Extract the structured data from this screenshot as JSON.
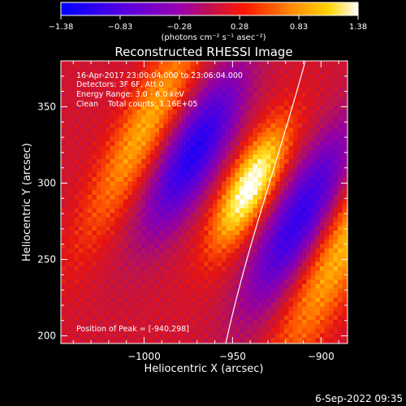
{
  "chart_data": {
    "type": "heatmap",
    "title": "Reconstructed RHESSI Image",
    "xlabel": "Heliocentric X (arcsec)",
    "ylabel": "Heliocentric Y (arcsec)",
    "xlim": [
      -1047,
      -885
    ],
    "ylim": [
      195,
      380
    ],
    "xticks": [
      -1000,
      -950,
      -900
    ],
    "xtick_labels": [
      "−1000",
      "−950",
      "−900"
    ],
    "yticks": [
      200,
      250,
      300,
      350
    ],
    "ytick_labels": [
      "200",
      "250",
      "300",
      "350"
    ],
    "colorbar": {
      "range": [
        -1.38,
        1.38
      ],
      "ticks": [
        -1.38,
        -0.83,
        -0.28,
        0.28,
        0.83,
        1.38
      ],
      "tick_labels": [
        "−1.38",
        "−0.83",
        "−0.28",
        "0.28",
        "0.83",
        "1.38"
      ],
      "unit_label": "(photons cm⁻² s⁻¹ asec⁻²)"
    },
    "peak": {
      "x": -940,
      "y": 298
    },
    "annotations": [
      "16-Apr-2017 23:00:04.000 to 23:06:04.000",
      "Detectors: 3F 6F, Att 0",
      "Energy Range: 3.0 - 6.0 keV",
      "Clean    Total counts: 1.16E+05"
    ],
    "peak_label": "Position of Peak = [-940,298]",
    "features": [
      {
        "name": "central bright source",
        "x": -942,
        "y": 297,
        "value": 1.38
      },
      {
        "name": "left negative lobe",
        "x": -985,
        "y": 315,
        "value": -1.1
      },
      {
        "name": "right negative lobe",
        "x": -910,
        "y": 278,
        "value": -1.0
      },
      {
        "name": "left bright arc",
        "x": -1018,
        "y": 320,
        "value": 0.8
      },
      {
        "name": "right bright arc",
        "x": -882,
        "y": 258,
        "value": 0.85
      }
    ],
    "limb": "solar limb arc from (-938, 196) to (-875, 380)"
  },
  "footer": {
    "date": "6-Sep-2022 09:35"
  },
  "colors": {
    "background": "#000000",
    "colormap": [
      "#0000ff",
      "#7b00c8",
      "#ff0000",
      "#ffa000",
      "#ffffff"
    ]
  }
}
